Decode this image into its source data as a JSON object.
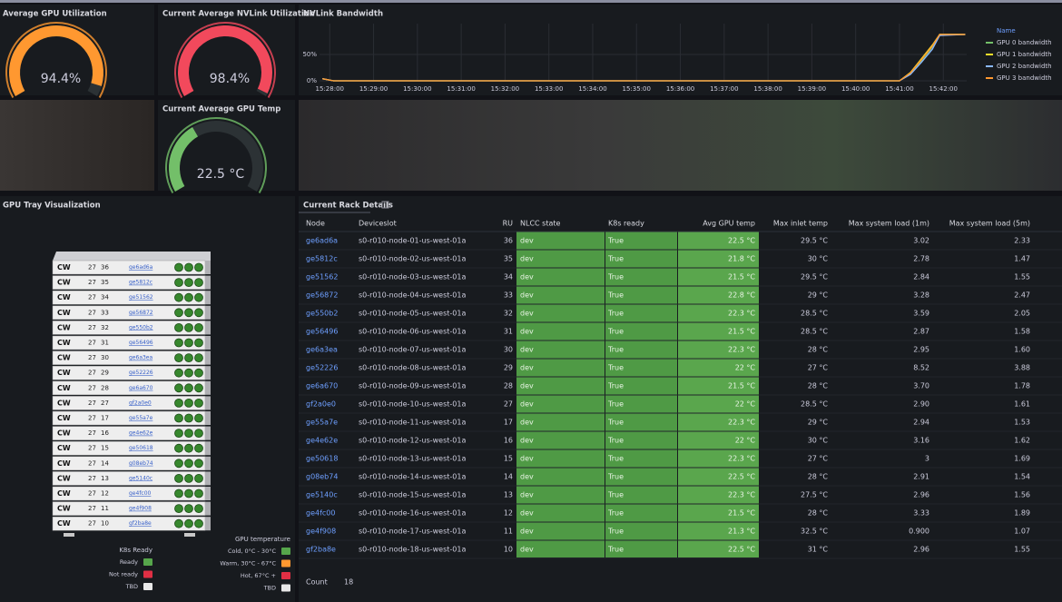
{
  "gauges": [
    {
      "title": "Average GPU Utilization",
      "value": 94.4,
      "value_label": "94.4%",
      "range": [
        0,
        100
      ],
      "color": "#ff9830"
    },
    {
      "title": "Current Average NVLink Utilization",
      "value": 98.4,
      "value_label": "98.4%",
      "range": [
        0,
        100
      ],
      "color": "#f2495c"
    },
    {
      "title": "Current Average GPU Temp",
      "value": 22.5,
      "value_label": "22.5 °C",
      "range": [
        0,
        60
      ],
      "color": "#73bf69"
    }
  ],
  "chart_data": {
    "type": "line",
    "title": "NVLink Bandwidth",
    "legend_title": "Name",
    "x": [
      "15:27:50",
      "15:28:05",
      "15:41:00",
      "15:41:15",
      "15:41:30",
      "15:41:45",
      "15:41:55",
      "15:42:30"
    ],
    "xlim": [
      "15:27:46",
      "15:42:32"
    ],
    "xticks": [
      "15:28:00",
      "15:29:00",
      "15:30:00",
      "15:31:00",
      "15:32:00",
      "15:33:00",
      "15:34:00",
      "15:35:00",
      "15:36:00",
      "15:37:00",
      "15:38:00",
      "15:39:00",
      "15:40:00",
      "15:41:00",
      "15:42:00"
    ],
    "ylim": [
      0,
      100
    ],
    "yticks": [
      {
        "value": 0,
        "label": "0%"
      },
      {
        "value": 50,
        "label": "50%"
      }
    ],
    "series": [
      {
        "name": "GPU 0 bandwidth",
        "color": "#73bf69",
        "values": [
          4,
          0,
          0,
          14,
          38,
          64,
          88,
          88
        ]
      },
      {
        "name": "GPU 1 bandwidth",
        "color": "#fade2a",
        "values": [
          4,
          0,
          0,
          16,
          42,
          68,
          88,
          88
        ]
      },
      {
        "name": "GPU 2 bandwidth",
        "color": "#8ab8ff",
        "values": [
          4,
          0,
          0,
          12,
          35,
          60,
          86,
          88
        ]
      },
      {
        "name": "GPU 3 bandwidth",
        "color": "#ff9830",
        "values": [
          4,
          0,
          0,
          15,
          40,
          66,
          88,
          88
        ]
      }
    ]
  },
  "tray": {
    "title": "GPU Tray Visualization",
    "logo": "CW",
    "rack_label": "27",
    "legend_k8s": {
      "title": "K8s Ready",
      "items": [
        {
          "label": "Ready",
          "color": "#56a64b"
        },
        {
          "label": "Not ready",
          "color": "#e02f44"
        },
        {
          "label": "TBD",
          "color": "#e8e8e8"
        }
      ]
    },
    "legend_temp": {
      "title": "GPU temperature",
      "items": [
        {
          "label": "Cold, 0°C - 30°C",
          "color": "#56a64b"
        },
        {
          "label": "Warm, 30°C - 67°C",
          "color": "#ff9830"
        },
        {
          "label": "Hot, 67°C +",
          "color": "#e02f44"
        },
        {
          "label": "TBD",
          "color": "#e8e8e8"
        }
      ]
    }
  },
  "table": {
    "title": "Current Rack Details",
    "columns": [
      "Node",
      "Deviceslot",
      "RU",
      "NLCC state",
      "K8s ready",
      "Avg GPU temp",
      "Max inlet temp",
      "Max system load (1m)",
      "Max system load (5m)"
    ],
    "rows": [
      [
        "ge6ad6a",
        "s0-r010-node-01-us-west-01a",
        "36",
        "dev",
        "True",
        "22.5 °C",
        "29.5 °C",
        "3.02",
        "2.33"
      ],
      [
        "ge5812c",
        "s0-r010-node-02-us-west-01a",
        "35",
        "dev",
        "True",
        "21.8 °C",
        "30 °C",
        "2.78",
        "1.47"
      ],
      [
        "ge51562",
        "s0-r010-node-03-us-west-01a",
        "34",
        "dev",
        "True",
        "21.5 °C",
        "29.5 °C",
        "2.84",
        "1.55"
      ],
      [
        "ge56872",
        "s0-r010-node-04-us-west-01a",
        "33",
        "dev",
        "True",
        "22.8 °C",
        "29 °C",
        "3.28",
        "2.47"
      ],
      [
        "ge550b2",
        "s0-r010-node-05-us-west-01a",
        "32",
        "dev",
        "True",
        "22.3 °C",
        "28.5 °C",
        "3.59",
        "2.05"
      ],
      [
        "ge56496",
        "s0-r010-node-06-us-west-01a",
        "31",
        "dev",
        "True",
        "21.5 °C",
        "28.5 °C",
        "2.87",
        "1.58"
      ],
      [
        "ge6a3ea",
        "s0-r010-node-07-us-west-01a",
        "30",
        "dev",
        "True",
        "22.3 °C",
        "28 °C",
        "2.95",
        "1.60"
      ],
      [
        "ge52226",
        "s0-r010-node-08-us-west-01a",
        "29",
        "dev",
        "True",
        "22 °C",
        "27 °C",
        "8.52",
        "3.88"
      ],
      [
        "ge6a670",
        "s0-r010-node-09-us-west-01a",
        "28",
        "dev",
        "True",
        "21.5 °C",
        "28 °C",
        "3.70",
        "1.78"
      ],
      [
        "gf2a0e0",
        "s0-r010-node-10-us-west-01a",
        "27",
        "dev",
        "True",
        "22 °C",
        "28.5 °C",
        "2.90",
        "1.61"
      ],
      [
        "ge55a7e",
        "s0-r010-node-11-us-west-01a",
        "17",
        "dev",
        "True",
        "22.3 °C",
        "29 °C",
        "2.94",
        "1.53"
      ],
      [
        "ge4e62e",
        "s0-r010-node-12-us-west-01a",
        "16",
        "dev",
        "True",
        "22 °C",
        "30 °C",
        "3.16",
        "1.62"
      ],
      [
        "ge50618",
        "s0-r010-node-13-us-west-01a",
        "15",
        "dev",
        "True",
        "22.3 °C",
        "27 °C",
        "3",
        "1.69"
      ],
      [
        "g08eb74",
        "s0-r010-node-14-us-west-01a",
        "14",
        "dev",
        "True",
        "22.5 °C",
        "28 °C",
        "2.91",
        "1.54"
      ],
      [
        "ge5140c",
        "s0-r010-node-15-us-west-01a",
        "13",
        "dev",
        "True",
        "22.3 °C",
        "27.5 °C",
        "2.96",
        "1.56"
      ],
      [
        "ge4fc00",
        "s0-r010-node-16-us-west-01a",
        "12",
        "dev",
        "True",
        "21.5 °C",
        "28 °C",
        "3.33",
        "1.89"
      ],
      [
        "ge4f908",
        "s0-r010-node-17-us-west-01a",
        "11",
        "dev",
        "True",
        "21.3 °C",
        "32.5 °C",
        "0.900",
        "1.07"
      ],
      [
        "gf2ba8e",
        "s0-r010-node-18-us-west-01a",
        "10",
        "dev",
        "True",
        "22.5 °C",
        "31 °C",
        "2.96",
        "1.55"
      ]
    ],
    "footer": {
      "label": "Count",
      "value": "18"
    }
  }
}
